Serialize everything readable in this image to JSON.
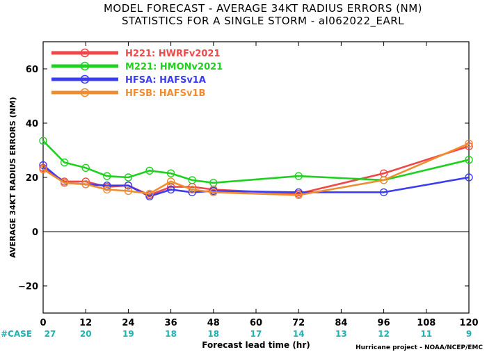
{
  "chart_data": {
    "type": "line",
    "title": "MODEL FORECAST - AVERAGE 34KT RADIUS ERRORS (NM)",
    "subtitle": "STATISTICS FOR A SINGLE STORM - al062022_EARL",
    "xlabel": "Forecast lead time (hr)",
    "ylabel": "AVERAGE 34KT RADIUS ERRORS (NM)",
    "xlim": [
      0,
      120
    ],
    "ylim": [
      -30,
      70
    ],
    "xticks": [
      0,
      12,
      24,
      36,
      48,
      60,
      72,
      84,
      96,
      108,
      120
    ],
    "yticks": [
      -20,
      0,
      20,
      40,
      60
    ],
    "zero_line": true,
    "legend_placement": "top-left",
    "case_label": "#CASE",
    "cases": [
      {
        "x": 0,
        "n": "27"
      },
      {
        "x": 12,
        "n": "20"
      },
      {
        "x": 24,
        "n": "19"
      },
      {
        "x": 36,
        "n": "18"
      },
      {
        "x": 48,
        "n": "18"
      },
      {
        "x": 60,
        "n": "17"
      },
      {
        "x": 72,
        "n": "14"
      },
      {
        "x": 84,
        "n": "13"
      },
      {
        "x": 96,
        "n": "12"
      },
      {
        "x": 108,
        "n": "11"
      },
      {
        "x": 120,
        "n": "9"
      }
    ],
    "credit": "Hurricane project - NOAA/NCEP/EMC",
    "series": [
      {
        "name": "H221: HWRFv2021",
        "color": "#f04848",
        "points": [
          [
            0,
            23.5
          ],
          [
            6,
            18.5
          ],
          [
            12,
            18.5
          ],
          [
            18,
            16.5
          ],
          [
            24,
            17
          ],
          [
            30,
            13.5
          ],
          [
            36,
            16.5
          ],
          [
            42,
            16.5
          ],
          [
            48,
            15.5
          ],
          [
            72,
            14
          ],
          [
            96,
            21.5
          ],
          [
            120,
            31.5
          ]
        ]
      },
      {
        "name": "M221: HMONv2021",
        "color": "#20d020",
        "points": [
          [
            0,
            33.5
          ],
          [
            6,
            25.5
          ],
          [
            12,
            23.5
          ],
          [
            18,
            20.5
          ],
          [
            24,
            20
          ],
          [
            30,
            22.5
          ],
          [
            36,
            21.5
          ],
          [
            42,
            19
          ],
          [
            48,
            18
          ],
          [
            72,
            20.5
          ],
          [
            96,
            19
          ],
          [
            120,
            26.5
          ]
        ]
      },
      {
        "name": "HFSA: HAFSv1A",
        "color": "#3c3cf0",
        "points": [
          [
            0,
            24.5
          ],
          [
            6,
            18
          ],
          [
            12,
            17.5
          ],
          [
            18,
            17
          ],
          [
            24,
            17
          ],
          [
            30,
            13
          ],
          [
            36,
            15.5
          ],
          [
            42,
            14.5
          ],
          [
            48,
            15
          ],
          [
            72,
            14.5
          ],
          [
            96,
            14.5
          ],
          [
            120,
            20
          ]
        ]
      },
      {
        "name": "HFSB: HAFSv1B",
        "color": "#f08c30",
        "points": [
          [
            0,
            23
          ],
          [
            6,
            18
          ],
          [
            12,
            17.5
          ],
          [
            18,
            15.5
          ],
          [
            24,
            15
          ],
          [
            30,
            14
          ],
          [
            36,
            18.5
          ],
          [
            42,
            15.5
          ],
          [
            48,
            14.5
          ],
          [
            72,
            13.5
          ],
          [
            96,
            19
          ],
          [
            120,
            32.5
          ]
        ]
      }
    ]
  }
}
